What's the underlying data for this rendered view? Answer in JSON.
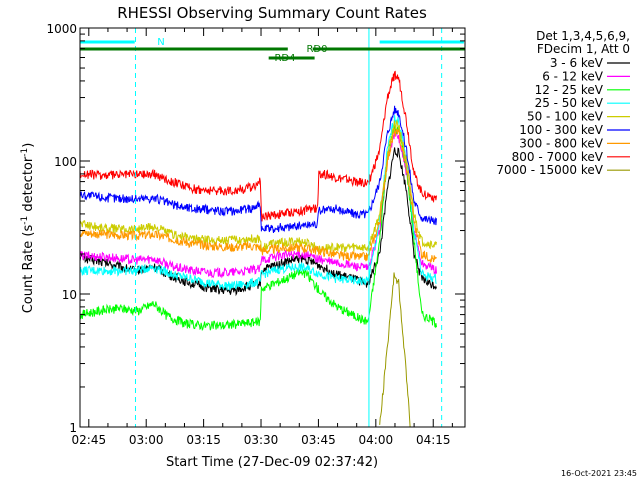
{
  "chart_data": {
    "type": "line",
    "title": "RHESSI Observing Summary Count Rates",
    "xlabel": "Start Time (27-Dec-09 02:37:42)",
    "ylabel_main": "Count Rate (s",
    "ylabel_sup1": "-1",
    "ylabel_mid": " detector",
    "ylabel_sup2": "-1",
    "ylabel_end": ")",
    "yscale": "log",
    "ylim": [
      1,
      1000
    ],
    "xlim_minutes": [
      -2.3,
      98.3
    ],
    "xticks": [
      {
        "m": 0,
        "label": "02:45"
      },
      {
        "m": 15,
        "label": "03:00"
      },
      {
        "m": 30,
        "label": "03:15"
      },
      {
        "m": 45,
        "label": "03:30"
      },
      {
        "m": 60,
        "label": "03:45"
      },
      {
        "m": 75,
        "label": "04:00"
      },
      {
        "m": 90,
        "label": "04:15"
      }
    ],
    "yticks": [
      {
        "v": 1,
        "label": "1"
      },
      {
        "v": 10,
        "label": "10"
      },
      {
        "v": 100,
        "label": "100"
      },
      {
        "v": 1000,
        "label": "1000"
      }
    ],
    "legend": {
      "placement": "right",
      "header": [
        "Det 1,3,4,5,6,9,",
        "FDecim 1, Att 0"
      ]
    },
    "series": [
      {
        "name": "3 - 6 keV",
        "color": "#000000",
        "points": [
          [
            -2.3,
            19
          ],
          [
            5,
            17
          ],
          [
            12,
            15
          ],
          [
            17,
            16
          ],
          [
            22,
            13.5
          ],
          [
            27,
            12
          ],
          [
            32,
            11
          ],
          [
            37,
            10.5
          ],
          [
            42,
            11.5
          ],
          [
            44.9,
            12
          ],
          [
            45,
            15
          ],
          [
            50,
            17
          ],
          [
            55,
            18.5
          ],
          [
            57,
            18
          ],
          [
            61,
            16
          ],
          [
            65,
            14
          ],
          [
            71,
            12.5
          ],
          [
            73,
            12
          ],
          [
            76,
            20
          ],
          [
            78,
            60
          ],
          [
            79.8,
            120
          ],
          [
            81,
            115
          ],
          [
            83,
            60
          ],
          [
            85,
            20
          ],
          [
            87,
            13
          ],
          [
            89,
            12
          ],
          [
            91,
            11.5
          ]
        ]
      },
      {
        "name": "6 - 12 keV",
        "color": "#ff00ff",
        "points": [
          [
            -2.3,
            19.5
          ],
          [
            5,
            19
          ],
          [
            12,
            18
          ],
          [
            17,
            18.5
          ],
          [
            22,
            16
          ],
          [
            27,
            15
          ],
          [
            32,
            14.5
          ],
          [
            37,
            14.5
          ],
          [
            42,
            15
          ],
          [
            44.9,
            15.5
          ],
          [
            45,
            18
          ],
          [
            50,
            19.5
          ],
          [
            55,
            20
          ],
          [
            57,
            19.5
          ],
          [
            61,
            18
          ],
          [
            65,
            17
          ],
          [
            71,
            16
          ],
          [
            73,
            15.5
          ],
          [
            76,
            30
          ],
          [
            78,
            100
          ],
          [
            79.8,
            160
          ],
          [
            81,
            150
          ],
          [
            83,
            80
          ],
          [
            85,
            30
          ],
          [
            87,
            17
          ],
          [
            89,
            16
          ],
          [
            91,
            15
          ]
        ]
      },
      {
        "name": "12 - 25 keV",
        "color": "#00ff00",
        "points": [
          [
            -2.3,
            7
          ],
          [
            3,
            7.5
          ],
          [
            8,
            7.8
          ],
          [
            13,
            7.5
          ],
          [
            17,
            8.5
          ],
          [
            20,
            7
          ],
          [
            25,
            6
          ],
          [
            30,
            5.8
          ],
          [
            35,
            5.8
          ],
          [
            40,
            6
          ],
          [
            44.9,
            6.2
          ],
          [
            45,
            11
          ],
          [
            50,
            12.5
          ],
          [
            55,
            14.5
          ],
          [
            57,
            14
          ],
          [
            61,
            10
          ],
          [
            65,
            8
          ],
          [
            71,
            6.5
          ],
          [
            73,
            6.2
          ],
          [
            76,
            25
          ],
          [
            78,
            110
          ],
          [
            79.8,
            175
          ],
          [
            81,
            170
          ],
          [
            83,
            90
          ],
          [
            85,
            25
          ],
          [
            87,
            7
          ],
          [
            89,
            6.5
          ],
          [
            91,
            6
          ]
        ]
      },
      {
        "name": "25 - 50 keV",
        "color": "#00ffff",
        "points": [
          [
            -2.3,
            15
          ],
          [
            5,
            15
          ],
          [
            12,
            15
          ],
          [
            17,
            16
          ],
          [
            22,
            14
          ],
          [
            27,
            13
          ],
          [
            32,
            12
          ],
          [
            37,
            11.5
          ],
          [
            42,
            12
          ],
          [
            44.9,
            12.5
          ],
          [
            45,
            14
          ],
          [
            50,
            15.5
          ],
          [
            55,
            16
          ],
          [
            57,
            15.5
          ],
          [
            61,
            14
          ],
          [
            65,
            13
          ],
          [
            71,
            12.5
          ],
          [
            73,
            12.5
          ],
          [
            76,
            35
          ],
          [
            78,
            120
          ],
          [
            79.8,
            210
          ],
          [
            81,
            200
          ],
          [
            83,
            100
          ],
          [
            85,
            30
          ],
          [
            87,
            14
          ],
          [
            89,
            13.5
          ],
          [
            91,
            13
          ]
        ]
      },
      {
        "name": "50 - 100 keV",
        "color": "#cccc00",
        "points": [
          [
            -2.3,
            34
          ],
          [
            5,
            31
          ],
          [
            12,
            31
          ],
          [
            17,
            32
          ],
          [
            22,
            28
          ],
          [
            27,
            26
          ],
          [
            32,
            25.5
          ],
          [
            37,
            25.5
          ],
          [
            42,
            26
          ],
          [
            44.9,
            26
          ],
          [
            45,
            22
          ],
          [
            48,
            24
          ],
          [
            55,
            25
          ],
          [
            57,
            24
          ],
          [
            61,
            22
          ],
          [
            65,
            22.5
          ],
          [
            71,
            22.5
          ],
          [
            73,
            22
          ],
          [
            76,
            40
          ],
          [
            78,
            110
          ],
          [
            79.8,
            190
          ],
          [
            81,
            185
          ],
          [
            83,
            100
          ],
          [
            85,
            40
          ],
          [
            87,
            25
          ],
          [
            89,
            24
          ],
          [
            91,
            23
          ]
        ]
      },
      {
        "name": "100 - 300 keV",
        "color": "#0000ff",
        "points": [
          [
            -2.3,
            56
          ],
          [
            5,
            53
          ],
          [
            12,
            52
          ],
          [
            17,
            53
          ],
          [
            22,
            47
          ],
          [
            27,
            44
          ],
          [
            32,
            43
          ],
          [
            37,
            42
          ],
          [
            42,
            44
          ],
          [
            44.9,
            48
          ],
          [
            45,
            30
          ],
          [
            47,
            31
          ],
          [
            52,
            32
          ],
          [
            57,
            33
          ],
          [
            59.9,
            34
          ],
          [
            60,
            42
          ],
          [
            64,
            44
          ],
          [
            70,
            40
          ],
          [
            73,
            40
          ],
          [
            76,
            70
          ],
          [
            78,
            160
          ],
          [
            79.8,
            245
          ],
          [
            81,
            235
          ],
          [
            83,
            120
          ],
          [
            85,
            50
          ],
          [
            87,
            38
          ],
          [
            89,
            36
          ],
          [
            91,
            35
          ]
        ]
      },
      {
        "name": "300 - 800 keV",
        "color": "#ff9900",
        "points": [
          [
            -2.3,
            29
          ],
          [
            5,
            28
          ],
          [
            12,
            27.5
          ],
          [
            17,
            28
          ],
          [
            22,
            26
          ],
          [
            27,
            24
          ],
          [
            32,
            23
          ],
          [
            37,
            22.5
          ],
          [
            42,
            23
          ],
          [
            44.9,
            22.5
          ],
          [
            45,
            21
          ],
          [
            50,
            22
          ],
          [
            55,
            22.5
          ],
          [
            57,
            22
          ],
          [
            61,
            21
          ],
          [
            65,
            19.5
          ],
          [
            71,
            19
          ],
          [
            73,
            19
          ],
          [
            76,
            35
          ],
          [
            78,
            100
          ],
          [
            79.8,
            165
          ],
          [
            81,
            160
          ],
          [
            83,
            90
          ],
          [
            85,
            35
          ],
          [
            87,
            20
          ],
          [
            89,
            19
          ],
          [
            91,
            18
          ]
        ]
      },
      {
        "name": "800 - 7000 keV",
        "color": "#ff0000",
        "points": [
          [
            -2.3,
            80
          ],
          [
            5,
            78
          ],
          [
            12,
            80
          ],
          [
            17,
            80
          ],
          [
            22,
            70
          ],
          [
            27,
            62
          ],
          [
            32,
            60
          ],
          [
            37,
            60
          ],
          [
            42,
            63
          ],
          [
            44.9,
            70
          ],
          [
            45,
            38
          ],
          [
            47,
            39
          ],
          [
            52,
            41
          ],
          [
            57,
            43
          ],
          [
            59.9,
            44
          ],
          [
            60,
            82
          ],
          [
            64,
            76
          ],
          [
            70,
            70
          ],
          [
            73,
            68
          ],
          [
            76,
            120
          ],
          [
            78,
            300
          ],
          [
            79.8,
            440
          ],
          [
            81,
            420
          ],
          [
            83,
            200
          ],
          [
            85,
            80
          ],
          [
            87,
            58
          ],
          [
            89,
            55
          ],
          [
            91,
            53
          ]
        ]
      },
      {
        "name": "7000 - 15000 keV",
        "color": "#999900",
        "points": [
          [
            76,
            1
          ],
          [
            78,
            4
          ],
          [
            79.8,
            14
          ],
          [
            81,
            12
          ],
          [
            82,
            5
          ],
          [
            83,
            2.5
          ],
          [
            84,
            1
          ]
        ]
      }
    ],
    "status_bars": [
      {
        "label": "N",
        "color": "#00ffff",
        "segments": [
          [
            -2.3,
            12
          ],
          [
            76,
            98
          ]
        ]
      },
      {
        "label": "RD0",
        "color": "#007700",
        "segments": [
          [
            -2.3,
            52
          ],
          [
            58.5,
            98.3
          ]
        ]
      },
      {
        "label": "RD4",
        "color": "#007700",
        "segments": [
          [
            47,
            59
          ]
        ]
      }
    ],
    "vertical_markers": [
      {
        "m": 12.2,
        "color": "#00ffff",
        "style": "dashed"
      },
      {
        "m": 73.2,
        "color": "#00ffff",
        "style": "solid"
      },
      {
        "m": 92.2,
        "color": "#00ffff",
        "style": "dashed"
      }
    ],
    "footer_timestamp": "16-Oct-2021 23:45"
  }
}
